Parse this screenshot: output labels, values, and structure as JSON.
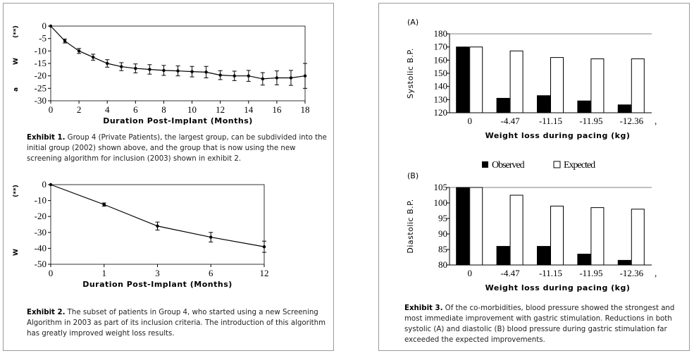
{
  "charts": {
    "ex1": {
      "type": "line",
      "x": [
        0,
        1,
        2,
        3,
        4,
        5,
        6,
        7,
        8,
        9,
        10,
        11,
        12,
        13,
        14,
        15,
        16,
        17,
        18
      ],
      "values": [
        0,
        -6,
        -10,
        -12.5,
        -15,
        -16.3,
        -17,
        -17.4,
        -17.8,
        -18,
        -18.3,
        -18.5,
        -19.7,
        -20,
        -20,
        -21.2,
        -20.8,
        -20.8,
        -20
      ],
      "err": [
        0,
        0.8,
        1,
        1.2,
        1.5,
        1.6,
        1.8,
        1.9,
        2,
        2,
        2.1,
        2.3,
        1.8,
        1.9,
        2.2,
        2.5,
        2.8,
        3,
        5
      ],
      "xticks": [
        "0",
        "2",
        "4",
        "6",
        "8",
        "10",
        "12",
        "14",
        "16",
        "18"
      ],
      "yticks": [
        "0",
        "-5",
        "-10",
        "-15",
        "-20",
        "-25",
        "-30"
      ],
      "ymarks": [
        "(**)",
        "W",
        "a"
      ],
      "xlabel": "Duration Post-Implant (Months)",
      "xlim": [
        0,
        18
      ],
      "ylim": [
        -30,
        0
      ]
    },
    "ex2": {
      "type": "line",
      "categories": [
        "0",
        "1",
        "3",
        "6",
        "12"
      ],
      "values": [
        0,
        -12.5,
        -26,
        -33,
        -39
      ],
      "err": [
        0,
        1,
        2.5,
        3,
        3.5
      ],
      "yticks": [
        "0",
        "-10",
        "-20",
        "-30",
        "-40",
        "-50"
      ],
      "ymarks": [
        "(**)",
        "W"
      ],
      "xlabel": "Duration Post-Implant  (Months)",
      "ylim": [
        -50,
        0
      ]
    },
    "ex3a": {
      "type": "bar",
      "panel_label": "(A)",
      "categories": [
        "0",
        "-4.47",
        "-11.15",
        "-11.95",
        "-12.36"
      ],
      "series": [
        {
          "name": "Observed",
          "values": [
            170,
            131,
            133,
            129,
            126
          ]
        },
        {
          "name": "Expected",
          "values": [
            170,
            167,
            162,
            161,
            161
          ]
        }
      ],
      "yticks": [
        "180",
        "170",
        "160",
        "150",
        "140",
        "130",
        "120"
      ],
      "ylabel": "Systolic B.P.",
      "xlabel": "Weight loss during pacing (kg)",
      "ylim": [
        120,
        180
      ],
      "trail": ","
    },
    "ex3b": {
      "type": "bar",
      "panel_label": "(B)",
      "categories": [
        "0",
        "-4.47",
        "-11.15",
        "-11.95",
        "-12.36"
      ],
      "series": [
        {
          "name": "Observed",
          "values": [
            105,
            86,
            86,
            83.5,
            81.5
          ]
        },
        {
          "name": "Expected",
          "values": [
            105,
            102.5,
            99,
            98.5,
            98
          ]
        }
      ],
      "yticks": [
        "105",
        "100",
        "95",
        "90",
        "85",
        "80"
      ],
      "ylabel": "Diastolic B.P.",
      "xlabel": "Weight loss during pacing (kg)",
      "ylim": [
        80,
        105
      ],
      "trail": ","
    }
  },
  "legend": {
    "observed": "Observed",
    "expected": "Expected"
  },
  "captions": {
    "ex1_label": "Exhibit 1.",
    "ex1_text": " Group 4 (Private Patients), the largest group, can be subdivided into the initial group (2002) shown above, and the group that is now using the new screening algorithm for inclusion (2003) shown in exhibit 2.",
    "ex2_label": "Exhibit 2.",
    "ex2_text": " The subset of patients in Group 4, who started using a new Screening Algorithm in 2003 as part of its inclusion criteria. The introduction of this algorithm has greatly improved weight loss results.",
    "ex3_label": "Exhibit 3.",
    "ex3_text": " Of the co-morbidities, blood pressure showed the strongest and most immediate improvement with gastric stimulation. Reductions in both systolic (A) and diastolic (B) blood pressure during gastric stimulation far exceeded the expected improvements."
  }
}
